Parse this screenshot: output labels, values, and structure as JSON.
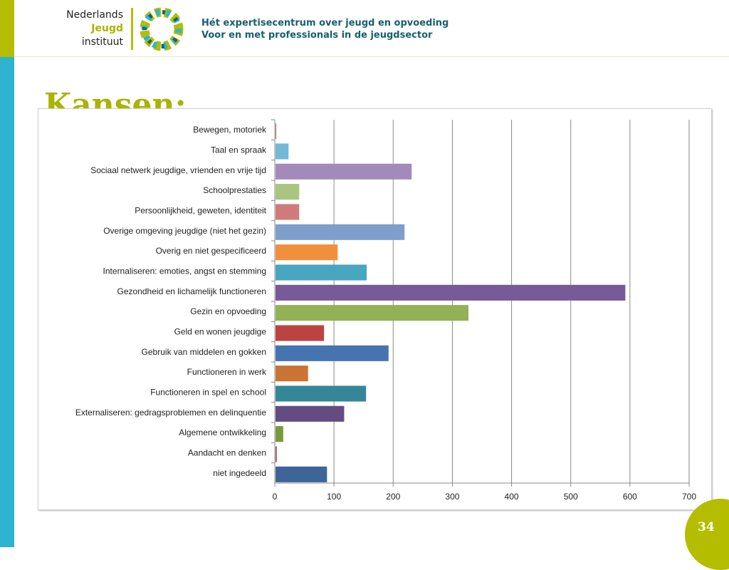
{
  "header": {
    "logo": {
      "line1": "Nederlands",
      "line2": "Jeugd",
      "line3": "instituut"
    },
    "tagline1": "Hét expertisecentrum over jeugd en opvoeding",
    "tagline2": "Voor en met professionals in de jeugdsector"
  },
  "slide": {
    "title": "Kansen:",
    "page_number": "34"
  },
  "colors": {
    "olive": "#b5bd00",
    "teal": "#2fb4d0"
  },
  "chart_data": {
    "type": "bar",
    "orientation": "horizontal",
    "grid": true,
    "xlim": [
      0,
      700
    ],
    "xticks": [
      "0",
      "100",
      "200",
      "300",
      "400",
      "500",
      "600",
      "700"
    ],
    "categories": [
      "Bewegen, motoriek",
      "Taal en spraak",
      "Sociaal netwerk jeugdige, vrienden en vrije tijd",
      "Schoolprestaties",
      "Persoonlijkheid, geweten, identiteit",
      "Overige omgeving jeugdige (niet het gezin)",
      "Overig en niet gespecificeerd",
      "Internaliseren: emoties, angst en stemming",
      "Gezondheid en lichamelijk functioneren",
      "Gezin en opvoeding",
      "Geld en wonen jeugdige",
      "Gebruik van middelen en gokken",
      "Functioneren in werk",
      "Functioneren in spel en school",
      "Externaliseren: gedragsproblemen en delinquentie",
      "Algemene ontwikkeling",
      "Aandacht en denken",
      "niet ingedeeld"
    ],
    "values": [
      1,
      22,
      230,
      40,
      40,
      218,
      105,
      154,
      591,
      326,
      82,
      191,
      55,
      153,
      116,
      13,
      2,
      87
    ],
    "colors": [
      "#c0504d",
      "#72b9d5",
      "#a28bba",
      "#a9c57f",
      "#d07b7b",
      "#7f9fcb",
      "#f0903c",
      "#47a6c0",
      "#775a98",
      "#93b155",
      "#bb4443",
      "#4674b0",
      "#c97334",
      "#358797",
      "#644c82",
      "#779a3e",
      "#a04040",
      "#3e6598"
    ]
  }
}
